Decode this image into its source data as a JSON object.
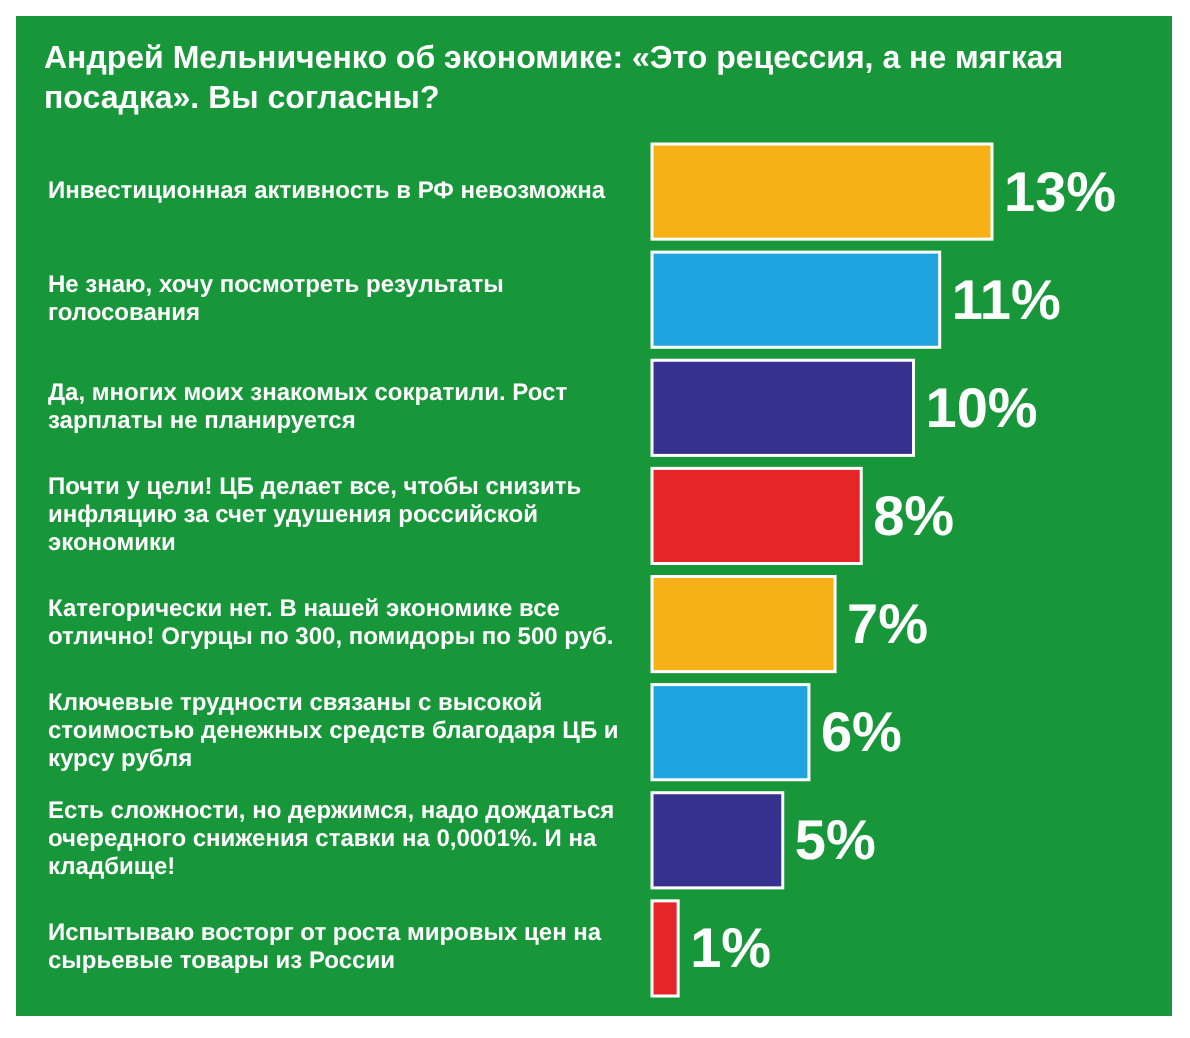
{
  "chart_data": {
    "type": "bar",
    "orientation": "horizontal",
    "title": "Андрей Мельниченко об экономике: «Это рецессия, а не мягкая посадка». Вы согласны?",
    "categories": [
      "Инвестиционная активность в РФ невозможна",
      "Не знаю, хочу посмотреть результаты голосования",
      "Да, многих моих знакомых сократили. Рост зарплаты не планируется",
      "Почти у цели! ЦБ делает все, чтобы снизить инфляцию за счет удушения российской экономики",
      "Категорически нет. В нашей экономике все отлично! Огурцы по 300, помидоры по 500 руб.",
      "Ключевые трудности связаны с высокой стоимостью денежных средств благодаря ЦБ и курсу рубля",
      "Есть сложности, но держимся, надо дождаться очередного снижения ставки на 0,0001%. И на кладбище!",
      "Испытываю восторг от роста мировых цен на сырьевые товары из России"
    ],
    "values": [
      13,
      11,
      10,
      8,
      7,
      6,
      5,
      1
    ],
    "colors": [
      "#f7b016",
      "#1ea5e0",
      "#36318f",
      "#e52528",
      "#f7b016",
      "#1ea5e0",
      "#36318f",
      "#e52528"
    ],
    "value_labels": [
      "13%",
      "11%",
      "10%",
      "8%",
      "7%",
      "6%",
      "5%",
      "1%"
    ]
  }
}
